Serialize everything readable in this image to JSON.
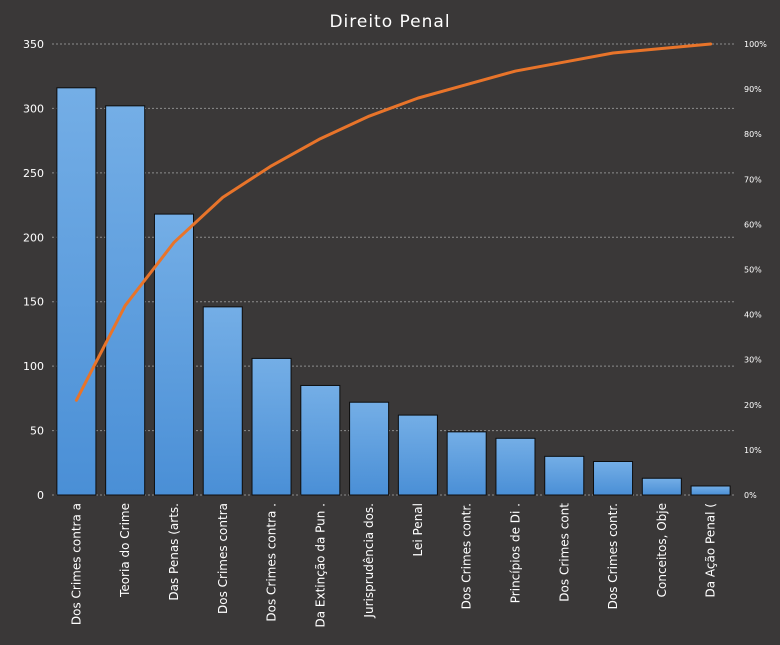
{
  "colors": {
    "background": "#3a3838",
    "bar_fill": "#4a8fd6",
    "bar_stroke": "#0d0d0d",
    "line": "#e8742a",
    "text": "#ffffff",
    "grid": "#8c8c8c"
  },
  "chart_data": {
    "type": "bar",
    "title": "Direito Penal",
    "categories": [
      "Dos Crimes contra a",
      "Teoria do Crime",
      "Das Penas (arts.",
      "Dos Crimes contra",
      "Dos Crimes contra .",
      "Da Extinção da Pun .",
      "Jurisprudência dos.",
      "Lei Penal",
      "Dos Crimes contr.",
      "Princípios de Di .",
      "Dos Crimes cont",
      "Dos Crimes contr.",
      "Conceitos, Obje",
      "Da Ação Penal ("
    ],
    "series": [
      {
        "type": "bar",
        "values": [
          316,
          302,
          218,
          146,
          106,
          85,
          72,
          62,
          49,
          44,
          30,
          26,
          13,
          7
        ]
      },
      {
        "type": "line",
        "axis": "secondary",
        "values": [
          21,
          42,
          56,
          66,
          73,
          79,
          84,
          88,
          91,
          94,
          96,
          98,
          99,
          100
        ]
      }
    ],
    "ylim": [
      0,
      350
    ],
    "yticks": [
      0,
      50,
      100,
      150,
      200,
      250,
      300,
      350
    ],
    "y2lim": [
      0,
      100
    ],
    "y2ticks": [
      "0%",
      "10%",
      "20%",
      "30%",
      "40%",
      "50%",
      "60%",
      "70%",
      "80%",
      "90%",
      "100%"
    ],
    "grid": true,
    "legend": "none"
  }
}
